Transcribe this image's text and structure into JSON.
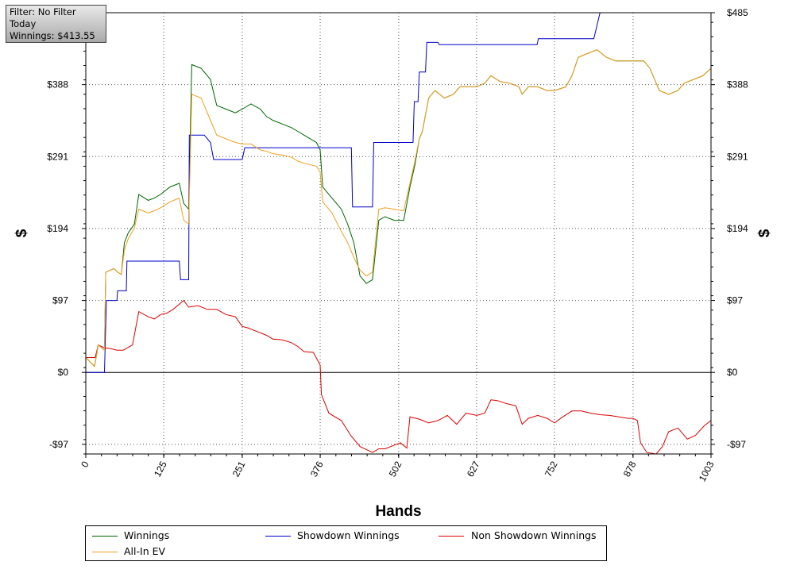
{
  "info": {
    "filter": "Filter: No Filter",
    "period": "Today",
    "winnings": "Winnings: $413.55"
  },
  "chart_data": {
    "type": "line",
    "xlabel": "Hands",
    "ylabel": "$",
    "xlim": [
      0,
      1003
    ],
    "ylim": [
      -110,
      485
    ],
    "x_ticks": [
      "0",
      "125",
      "251",
      "376",
      "502",
      "627",
      "752",
      "878",
      "1003"
    ],
    "y_ticks": [
      {
        "value": 485,
        "label": "$485"
      },
      {
        "value": 388,
        "label": "$388"
      },
      {
        "value": 291,
        "label": "$291"
      },
      {
        "value": 194,
        "label": "$194"
      },
      {
        "value": 97,
        "label": "$97"
      },
      {
        "value": 0,
        "label": "$0"
      },
      {
        "value": -97,
        "label": "-$97"
      }
    ],
    "grid": true,
    "legend_position": "bottom",
    "series": [
      {
        "name": "Winnings",
        "color": "#006400",
        "points": [
          [
            0,
            20
          ],
          [
            14,
            8
          ],
          [
            20,
            37
          ],
          [
            30,
            30
          ],
          [
            32,
            135
          ],
          [
            45,
            140
          ],
          [
            50,
            136
          ],
          [
            57,
            132
          ],
          [
            62,
            175
          ],
          [
            68,
            188
          ],
          [
            78,
            200
          ],
          [
            85,
            240
          ],
          [
            100,
            232
          ],
          [
            110,
            235
          ],
          [
            120,
            240
          ],
          [
            135,
            250
          ],
          [
            150,
            255
          ],
          [
            157,
            228
          ],
          [
            165,
            220
          ],
          [
            170,
            415
          ],
          [
            185,
            410
          ],
          [
            200,
            395
          ],
          [
            210,
            360
          ],
          [
            225,
            355
          ],
          [
            240,
            350
          ],
          [
            251,
            355
          ],
          [
            265,
            362
          ],
          [
            280,
            355
          ],
          [
            290,
            345
          ],
          [
            300,
            340
          ],
          [
            315,
            335
          ],
          [
            330,
            330
          ],
          [
            340,
            325
          ],
          [
            350,
            320
          ],
          [
            370,
            310
          ],
          [
            376,
            300
          ],
          [
            380,
            250
          ],
          [
            395,
            235
          ],
          [
            410,
            220
          ],
          [
            420,
            200
          ],
          [
            430,
            175
          ],
          [
            440,
            130
          ],
          [
            450,
            120
          ],
          [
            460,
            125
          ],
          [
            470,
            205
          ],
          [
            480,
            210
          ],
          [
            495,
            205
          ],
          [
            510,
            205
          ],
          [
            520,
            250
          ],
          [
            528,
            280
          ],
          [
            535,
            315
          ],
          [
            540,
            325
          ],
          [
            550,
            370
          ],
          [
            560,
            380
          ],
          [
            575,
            370
          ],
          [
            590,
            375
          ],
          [
            600,
            385
          ],
          [
            615,
            385
          ],
          [
            627,
            385
          ],
          [
            640,
            390
          ],
          [
            650,
            400
          ],
          [
            665,
            392
          ],
          [
            680,
            390
          ],
          [
            695,
            385
          ],
          [
            700,
            375
          ],
          [
            710,
            385
          ],
          [
            725,
            385
          ],
          [
            740,
            380
          ],
          [
            752,
            380
          ],
          [
            770,
            385
          ],
          [
            780,
            400
          ],
          [
            790,
            425
          ],
          [
            805,
            430
          ],
          [
            820,
            435
          ],
          [
            835,
            425
          ],
          [
            850,
            420
          ],
          [
            865,
            420
          ],
          [
            878,
            420
          ],
          [
            895,
            420
          ],
          [
            905,
            410
          ],
          [
            920,
            380
          ],
          [
            935,
            375
          ],
          [
            950,
            380
          ],
          [
            960,
            390
          ],
          [
            975,
            395
          ],
          [
            990,
            400
          ],
          [
            1003,
            410
          ]
        ]
      },
      {
        "name": "Showdown Winnings",
        "color": "#0000cc",
        "points": [
          [
            0,
            0
          ],
          [
            30,
            0
          ],
          [
            33,
            97
          ],
          [
            50,
            97
          ],
          [
            51,
            110
          ],
          [
            65,
            110
          ],
          [
            66,
            150
          ],
          [
            150,
            150
          ],
          [
            152,
            125
          ],
          [
            165,
            125
          ],
          [
            166,
            320
          ],
          [
            190,
            320
          ],
          [
            200,
            310
          ],
          [
            205,
            287
          ],
          [
            251,
            287
          ],
          [
            255,
            303
          ],
          [
            376,
            303
          ],
          [
            377,
            303
          ],
          [
            426,
            303
          ],
          [
            428,
            223
          ],
          [
            460,
            223
          ],
          [
            462,
            310
          ],
          [
            525,
            310
          ],
          [
            527,
            365
          ],
          [
            533,
            365
          ],
          [
            535,
            405
          ],
          [
            545,
            405
          ],
          [
            547,
            445
          ],
          [
            565,
            445
          ],
          [
            567,
            442
          ],
          [
            724,
            442
          ],
          [
            726,
            450
          ],
          [
            815,
            450
          ],
          [
            825,
            485
          ]
        ]
      },
      {
        "name": "Non Showdown Winnings",
        "color": "#dd0000",
        "points": [
          [
            0,
            20
          ],
          [
            15,
            20
          ],
          [
            20,
            37
          ],
          [
            30,
            33
          ],
          [
            40,
            32
          ],
          [
            50,
            30
          ],
          [
            60,
            30
          ],
          [
            75,
            37
          ],
          [
            85,
            82
          ],
          [
            100,
            75
          ],
          [
            110,
            72
          ],
          [
            120,
            78
          ],
          [
            130,
            80
          ],
          [
            140,
            85
          ],
          [
            150,
            92
          ],
          [
            157,
            97
          ],
          [
            165,
            88
          ],
          [
            180,
            90
          ],
          [
            195,
            85
          ],
          [
            210,
            85
          ],
          [
            225,
            78
          ],
          [
            240,
            75
          ],
          [
            251,
            62
          ],
          [
            260,
            60
          ],
          [
            275,
            55
          ],
          [
            290,
            50
          ],
          [
            300,
            45
          ],
          [
            315,
            44
          ],
          [
            330,
            40
          ],
          [
            340,
            35
          ],
          [
            350,
            28
          ],
          [
            365,
            27
          ],
          [
            376,
            10
          ],
          [
            378,
            -30
          ],
          [
            390,
            -55
          ],
          [
            410,
            -65
          ],
          [
            425,
            -85
          ],
          [
            440,
            -100
          ],
          [
            460,
            -108
          ],
          [
            470,
            -103
          ],
          [
            480,
            -103
          ],
          [
            495,
            -98
          ],
          [
            505,
            -95
          ],
          [
            515,
            -102
          ],
          [
            520,
            -60
          ],
          [
            535,
            -63
          ],
          [
            550,
            -68
          ],
          [
            565,
            -65
          ],
          [
            580,
            -58
          ],
          [
            595,
            -70
          ],
          [
            610,
            -55
          ],
          [
            627,
            -58
          ],
          [
            640,
            -55
          ],
          [
            650,
            -37
          ],
          [
            660,
            -38
          ],
          [
            675,
            -42
          ],
          [
            690,
            -45
          ],
          [
            700,
            -70
          ],
          [
            710,
            -62
          ],
          [
            725,
            -58
          ],
          [
            740,
            -62
          ],
          [
            752,
            -68
          ],
          [
            765,
            -60
          ],
          [
            780,
            -52
          ],
          [
            795,
            -52
          ],
          [
            810,
            -55
          ],
          [
            825,
            -57
          ],
          [
            840,
            -58
          ],
          [
            855,
            -60
          ],
          [
            870,
            -62
          ],
          [
            878,
            -62
          ],
          [
            885,
            -65
          ],
          [
            890,
            -95
          ],
          [
            900,
            -108
          ],
          [
            915,
            -110
          ],
          [
            925,
            -100
          ],
          [
            935,
            -80
          ],
          [
            950,
            -75
          ],
          [
            965,
            -90
          ],
          [
            978,
            -85
          ],
          [
            992,
            -72
          ],
          [
            1003,
            -65
          ]
        ]
      },
      {
        "name": "All-In EV",
        "color": "#f0a020",
        "points": [
          [
            0,
            20
          ],
          [
            14,
            8
          ],
          [
            20,
            37
          ],
          [
            30,
            30
          ],
          [
            32,
            135
          ],
          [
            45,
            140
          ],
          [
            50,
            136
          ],
          [
            57,
            132
          ],
          [
            62,
            165
          ],
          [
            68,
            180
          ],
          [
            78,
            195
          ],
          [
            85,
            220
          ],
          [
            100,
            215
          ],
          [
            110,
            218
          ],
          [
            120,
            222
          ],
          [
            135,
            230
          ],
          [
            150,
            235
          ],
          [
            157,
            205
          ],
          [
            165,
            200
          ],
          [
            170,
            375
          ],
          [
            185,
            370
          ],
          [
            200,
            340
          ],
          [
            210,
            320
          ],
          [
            225,
            315
          ],
          [
            240,
            310
          ],
          [
            251,
            308
          ],
          [
            265,
            308
          ],
          [
            280,
            300
          ],
          [
            290,
            298
          ],
          [
            300,
            295
          ],
          [
            315,
            293
          ],
          [
            330,
            290
          ],
          [
            340,
            285
          ],
          [
            350,
            282
          ],
          [
            370,
            278
          ],
          [
            376,
            270
          ],
          [
            380,
            230
          ],
          [
            395,
            215
          ],
          [
            410,
            190
          ],
          [
            420,
            175
          ],
          [
            430,
            155
          ],
          [
            440,
            138
          ],
          [
            450,
            130
          ],
          [
            460,
            135
          ],
          [
            470,
            220
          ],
          [
            480,
            222
          ],
          [
            495,
            220
          ],
          [
            510,
            218
          ],
          [
            520,
            255
          ],
          [
            528,
            285
          ],
          [
            535,
            315
          ],
          [
            540,
            325
          ],
          [
            550,
            370
          ],
          [
            560,
            380
          ],
          [
            575,
            370
          ],
          [
            590,
            375
          ],
          [
            600,
            385
          ],
          [
            615,
            385
          ],
          [
            627,
            385
          ],
          [
            640,
            390
          ],
          [
            650,
            400
          ],
          [
            665,
            392
          ],
          [
            680,
            390
          ],
          [
            695,
            385
          ],
          [
            700,
            375
          ],
          [
            710,
            385
          ],
          [
            725,
            385
          ],
          [
            740,
            380
          ],
          [
            752,
            380
          ],
          [
            770,
            385
          ],
          [
            780,
            400
          ],
          [
            790,
            425
          ],
          [
            805,
            430
          ],
          [
            820,
            435
          ],
          [
            835,
            425
          ],
          [
            850,
            420
          ],
          [
            865,
            420
          ],
          [
            878,
            420
          ],
          [
            895,
            420
          ],
          [
            905,
            410
          ],
          [
            920,
            380
          ],
          [
            935,
            375
          ],
          [
            950,
            380
          ],
          [
            960,
            390
          ],
          [
            975,
            395
          ],
          [
            990,
            400
          ],
          [
            1003,
            410
          ]
        ]
      }
    ]
  },
  "legend": {
    "items": [
      {
        "label": "Winnings",
        "color": "#006400"
      },
      {
        "label": "Showdown Winnings",
        "color": "#0000cc"
      },
      {
        "label": "Non Showdown Winnings",
        "color": "#dd0000"
      },
      {
        "label": "All-In EV",
        "color": "#f0a020"
      }
    ]
  }
}
